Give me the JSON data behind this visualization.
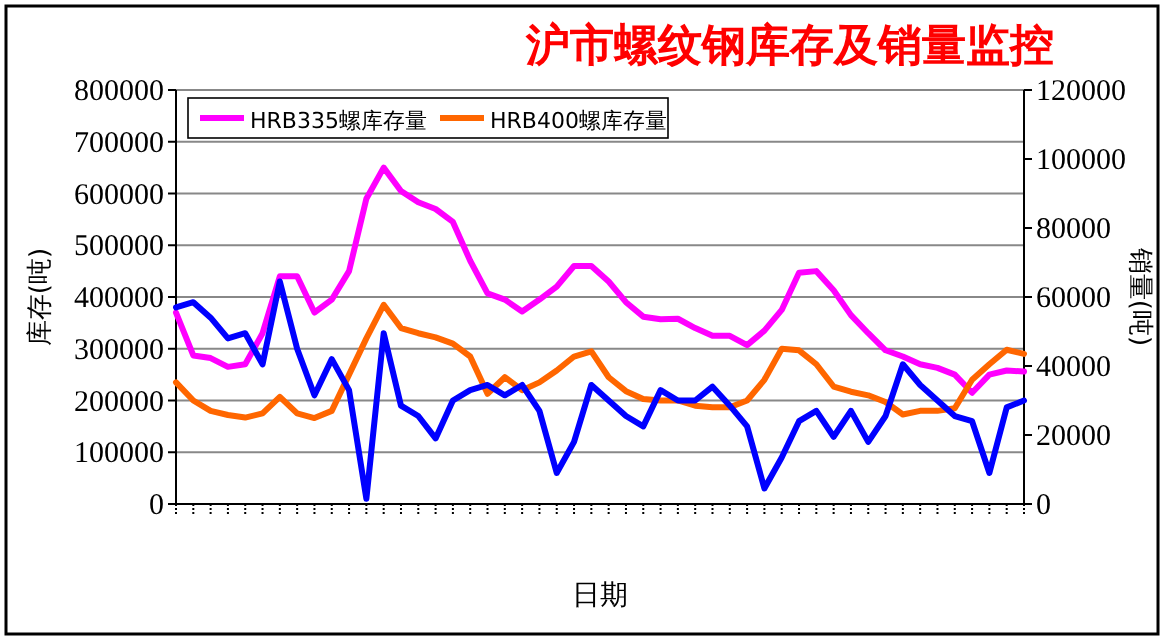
{
  "chart_data": {
    "type": "line",
    "title": "沪市螺纹钢库存及销量监控",
    "xlabel": "日期",
    "ylabel": "库存(吨)",
    "y2label": "销量(吨)",
    "categories": [
      null,
      null,
      null,
      null,
      null,
      null,
      null,
      null,
      null,
      null,
      null,
      null,
      null,
      null,
      null,
      null,
      null,
      null,
      null,
      null,
      null,
      null,
      null,
      null,
      null,
      null,
      null,
      null,
      null,
      null,
      null,
      null,
      null,
      null,
      null,
      null,
      null,
      null,
      null,
      null,
      null,
      null,
      null,
      null,
      null,
      null,
      null,
      null,
      null,
      null
    ],
    "series": [
      {
        "name": "HRB335螺库存量",
        "color": "#ff00ff",
        "values": [
          370000,
          287000,
          282000,
          265000,
          270000,
          330000,
          440000,
          440000,
          370000,
          395000,
          450000,
          590000,
          650000,
          605000,
          583000,
          570000,
          545000,
          470000,
          407000,
          395000,
          372000,
          395000,
          420000,
          460000,
          460000,
          430000,
          390000,
          362000,
          357000,
          358000,
          340000,
          325000,
          325000,
          307000,
          335000,
          375000,
          447000,
          450000,
          413000,
          365000,
          330000,
          297000,
          285000,
          270000,
          263000,
          250000,
          215000,
          250000,
          258000,
          256000
        ]
      },
      {
        "name": "HRB400螺库存量",
        "color": "#ff6600",
        "values": [
          235000,
          200000,
          180000,
          172000,
          167000,
          175000,
          207000,
          175000,
          166000,
          180000,
          250000,
          320000,
          385000,
          340000,
          330000,
          322000,
          310000,
          285000,
          213000,
          245000,
          220000,
          235000,
          258000,
          285000,
          295000,
          245000,
          218000,
          203000,
          200000,
          200000,
          190000,
          187000,
          187000,
          200000,
          240000,
          300000,
          297000,
          270000,
          227000,
          217000,
          210000,
          197000,
          173000,
          180000,
          180000,
          185000,
          240000,
          270000,
          298000,
          290000
        ]
      },
      {
        "color": "#0000ff",
        "axis": "y2",
        "values": [
          57000,
          58500,
          54000,
          48000,
          49500,
          40500,
          64500,
          45000,
          31500,
          42000,
          33000,
          1500,
          49500,
          28500,
          25500,
          19000,
          30000,
          33000,
          34500,
          31500,
          34500,
          27000,
          9000,
          18000,
          34500,
          30000,
          25500,
          22500,
          33000,
          30000,
          30000,
          34000,
          28500,
          22500,
          4500,
          13500,
          24000,
          27000,
          19500,
          27000,
          18000,
          25500,
          40500,
          34500,
          30000,
          25500,
          24000,
          9000,
          28000,
          30000
        ]
      }
    ],
    "ylim": [
      0,
      800000
    ],
    "yticks": [
      0,
      100000,
      200000,
      300000,
      400000,
      500000,
      600000,
      700000,
      800000
    ],
    "y2lim": [
      0,
      120000
    ],
    "y2ticks": [
      0,
      20000,
      40000,
      60000,
      80000,
      100000,
      120000
    ],
    "grid": "y",
    "legend": "top"
  }
}
